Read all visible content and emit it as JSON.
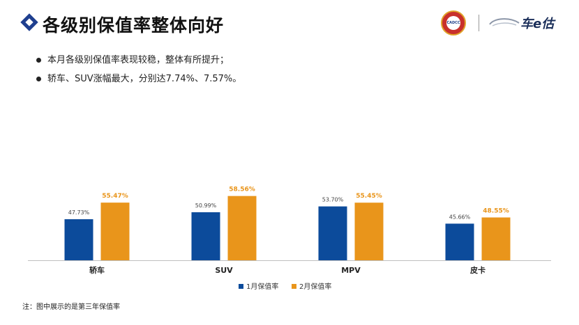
{
  "header": {
    "title": "各级别保值率整体向好",
    "logos": {
      "cadcc": "CADCC",
      "che300": "车e估"
    }
  },
  "bullets": [
    "本月各级别保值率表现较稳，整体有所提升；",
    "轿车、SUV涨幅最大，分别达7.74%、7.57%。"
  ],
  "chart_data": {
    "type": "bar",
    "title": "",
    "xlabel": "",
    "ylabel": "",
    "grid": false,
    "ylim": [
      0,
      60
    ],
    "categories": [
      "轿车",
      "SUV",
      "MPV",
      "皮卡"
    ],
    "series": [
      {
        "name": "1月保值率",
        "values": [
          47.73,
          50.99,
          53.7,
          45.66
        ],
        "labels": [
          "47.73%",
          "50.99%",
          "53.70%",
          "45.66%"
        ],
        "color": "#0c4b9b"
      },
      {
        "name": "2月保值率",
        "values": [
          55.47,
          58.56,
          55.45,
          48.55
        ],
        "labels": [
          "55.47%",
          "58.56%",
          "55.45%",
          "48.55%"
        ],
        "color": "#e9951b"
      }
    ],
    "legend_position": "bottom-center"
  },
  "note": "注：图中展示的是第三年保值率"
}
